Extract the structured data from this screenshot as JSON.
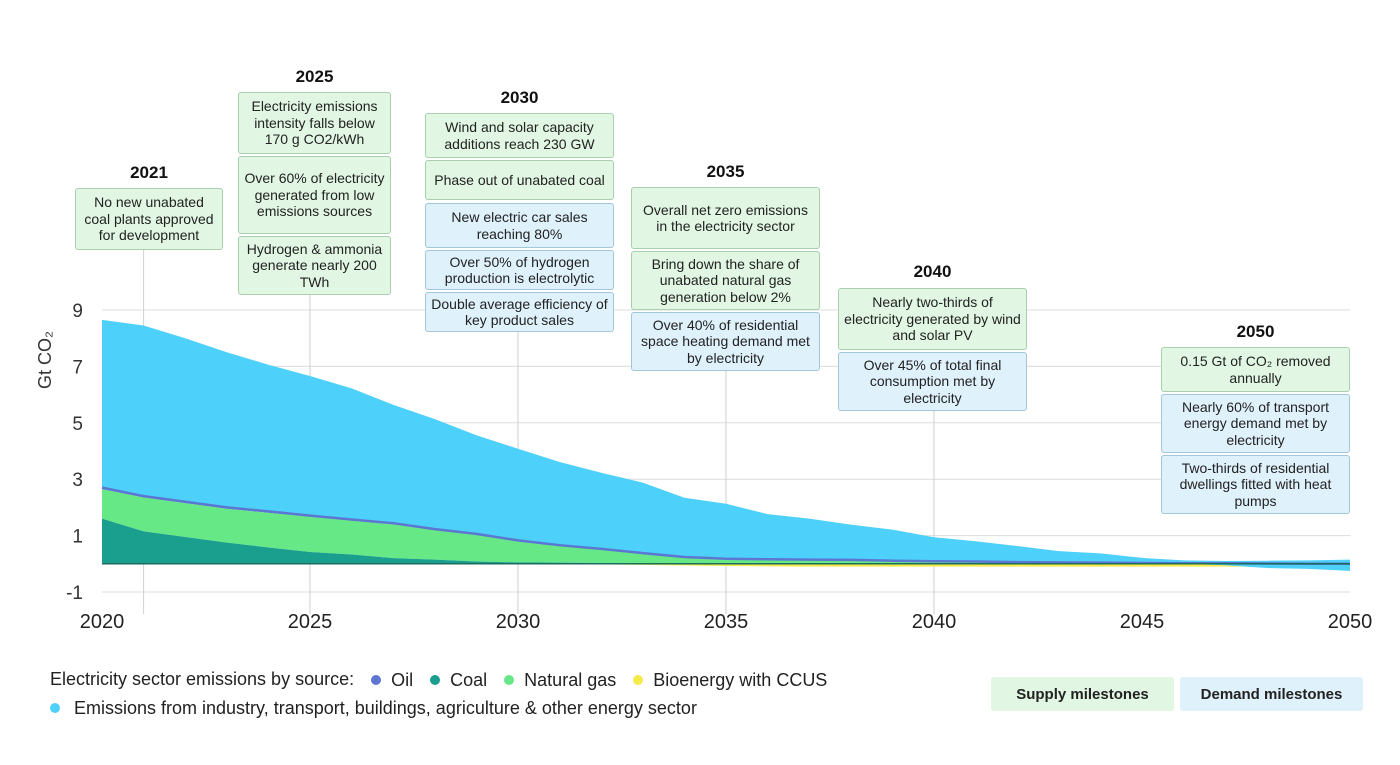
{
  "chart_data": {
    "type": "area",
    "ylabel": "Gt CO₂",
    "ylim": [
      -1,
      10
    ],
    "yticks": [
      "9",
      "7",
      "5",
      "3",
      "1",
      "-1"
    ],
    "ytick_values": [
      9,
      7,
      5,
      3,
      1,
      -1
    ],
    "xlim": [
      2020,
      2050
    ],
    "xticks": [
      "2020",
      "2025",
      "2030",
      "2035",
      "2040",
      "2045",
      "2050"
    ],
    "xtick_values": [
      2020,
      2025,
      2030,
      2035,
      2040,
      2045,
      2050
    ],
    "x": [
      2020,
      2021,
      2022,
      2023,
      2024,
      2025,
      2026,
      2027,
      2028,
      2029,
      2030,
      2031,
      2032,
      2033,
      2034,
      2035,
      2036,
      2037,
      2038,
      2039,
      2040,
      2041,
      2042,
      2043,
      2044,
      2045,
      2046,
      2047,
      2048,
      2049,
      2050
    ],
    "series": [
      {
        "name": "Coal",
        "color": "#1a9e8e",
        "values": [
          1.6,
          1.15,
          0.95,
          0.75,
          0.58,
          0.42,
          0.33,
          0.2,
          0.15,
          0.08,
          0.05,
          0.04,
          0.03,
          0.02,
          0.02,
          0.01,
          0.01,
          0.01,
          0.01,
          0.0,
          0,
          0,
          0,
          0,
          0,
          0,
          0,
          0,
          0,
          0,
          0
        ]
      },
      {
        "name": "Natural gas",
        "color": "#66e887",
        "values": [
          1.05,
          1.2,
          1.2,
          1.2,
          1.23,
          1.25,
          1.2,
          1.2,
          1.05,
          0.95,
          0.75,
          0.6,
          0.48,
          0.34,
          0.2,
          0.16,
          0.14,
          0.13,
          0.12,
          0.1,
          0.08,
          0.07,
          0.06,
          0.05,
          0.04,
          0.03,
          0.02,
          0.02,
          0.01,
          0.0,
          0
        ]
      },
      {
        "name": "Oil",
        "color": "#5b77d2",
        "values": [
          0.05,
          0.05,
          0.05,
          0.05,
          0.05,
          0.04,
          0.04,
          0.04,
          0.03,
          0.03,
          0.03,
          0.02,
          0.02,
          0.02,
          0.02,
          0.01,
          0.01,
          0.01,
          0.01,
          0.01,
          0.01,
          0.01,
          0,
          0,
          0,
          0,
          0,
          0,
          0,
          0,
          0
        ]
      },
      {
        "name": "Emissions from industry, transport, buildings, agriculture & other energy sector",
        "color": "#4dd0fa",
        "values": [
          5.95,
          6.05,
          5.8,
          5.5,
          5.2,
          4.95,
          4.65,
          4.2,
          3.9,
          3.5,
          3.25,
          2.95,
          2.7,
          2.5,
          2.1,
          1.95,
          1.6,
          1.45,
          1.25,
          1.1,
          0.85,
          0.72,
          0.57,
          0.4,
          0.33,
          0.18,
          0.1,
          0.08,
          0.1,
          0.12,
          0.15
        ]
      },
      {
        "name": "Bioenergy with CCUS",
        "color": "#f5ea4a",
        "values": [
          0,
          0,
          0,
          0,
          0,
          0,
          0,
          0,
          0,
          0,
          0,
          0,
          -0.02,
          -0.04,
          -0.06,
          -0.08,
          -0.09,
          -0.1,
          -0.1,
          -0.1,
          -0.1,
          -0.1,
          -0.1,
          -0.1,
          -0.1,
          -0.1,
          -0.1,
          -0.1,
          -0.1,
          -0.1,
          -0.1
        ]
      }
    ],
    "removals_values": [
      0,
      0,
      0,
      0,
      0,
      0,
      0,
      0,
      0,
      0,
      0,
      0,
      0,
      0,
      0,
      0,
      0,
      0,
      0,
      0,
      0,
      0,
      0,
      0,
      0,
      0,
      0,
      -0.05,
      -0.15,
      -0.18,
      -0.25
    ]
  },
  "milestones": [
    {
      "year": "2021",
      "items": [
        {
          "text": "No new unabated coal plants approved for development",
          "type": "supply"
        }
      ]
    },
    {
      "year": "2025",
      "items": [
        {
          "text": "Electricity emissions intensity falls below 170 g CO2/kWh",
          "type": "supply"
        },
        {
          "text": "Over 60% of electricity generated from low emissions sources",
          "type": "supply"
        },
        {
          "text": "Hydrogen & ammonia generate nearly 200 TWh",
          "type": "supply"
        }
      ]
    },
    {
      "year": "2030",
      "items": [
        {
          "text": "Wind and solar capacity additions reach 230 GW",
          "type": "supply"
        },
        {
          "text": "Phase out of unabated coal",
          "type": "supply"
        },
        {
          "text": "New electric car sales reaching 80%",
          "type": "demand"
        },
        {
          "text": "Over 50% of hydrogen production is electrolytic",
          "type": "demand"
        },
        {
          "text": "Double average efficiency of key product sales",
          "type": "demand"
        }
      ]
    },
    {
      "year": "2035",
      "items": [
        {
          "text": "Overall net zero emissions in the electricity sector",
          "type": "supply"
        },
        {
          "text": "Bring down the share of unabated natural gas generation below 2%",
          "type": "supply"
        },
        {
          "text": "Over 40% of residential space heating demand met by electricity",
          "type": "demand"
        }
      ]
    },
    {
      "year": "2040",
      "items": [
        {
          "text": "Nearly two-thirds of electricity generated by wind and solar PV",
          "type": "supply"
        },
        {
          "text": "Over 45% of total final consumption met by electricity",
          "type": "demand"
        }
      ]
    },
    {
      "year": "2050",
      "items": [
        {
          "text": "0.15 Gt of CO₂ removed annually",
          "type": "supply"
        },
        {
          "text": "Nearly 60% of transport energy demand met by electricity",
          "type": "demand"
        },
        {
          "text": "Two-thirds of residential dwellings fitted with heat pumps",
          "type": "demand"
        }
      ]
    }
  ],
  "legend": {
    "title": "Electricity sector emissions by source:",
    "items": [
      {
        "label": "Oil",
        "color": "#5b77d2"
      },
      {
        "label": "Coal",
        "color": "#1a9e8e"
      },
      {
        "label": "Natural gas",
        "color": "#66e887"
      },
      {
        "label": "Bioenergy with CCUS",
        "color": "#f5ea4a"
      }
    ],
    "other": {
      "label": "Emissions from industry, transport, buildings, agriculture & other energy sector",
      "color": "#4dd0fa"
    }
  },
  "key": {
    "supply_label": "Supply milestones",
    "demand_label": "Demand milestones",
    "supply_color": "#e1f6e3",
    "demand_color": "#dff1fb"
  }
}
